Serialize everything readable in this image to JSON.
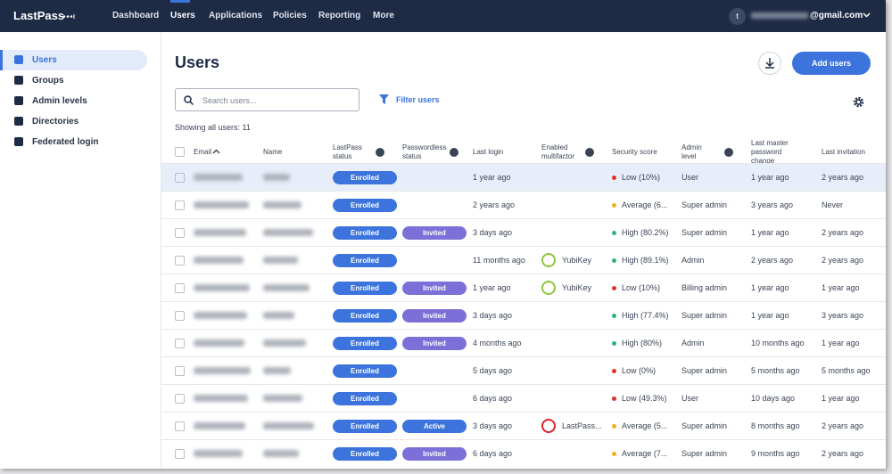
{
  "nav": {
    "brand": "LastPass",
    "items": [
      "Dashboard",
      "Users",
      "Applications",
      "Policies",
      "Reporting",
      "More"
    ],
    "active": 1,
    "account_initial": "t",
    "account_email": "@gmail.com"
  },
  "sidebar": {
    "items": [
      "Users",
      "Groups",
      "Admin levels",
      "Directories",
      "Federated login"
    ],
    "active": 0
  },
  "header": {
    "title": "Users",
    "add_button": "Add users",
    "search_placeholder": "Search users...",
    "filter": "Filter users",
    "count": "Showing all users: 11"
  },
  "table": {
    "columns": [
      "Email",
      "Name",
      "LastPass status",
      "Passwordless status",
      "Last login",
      "Enabled multifactor",
      "Security score",
      "Admin level",
      "Last master password change",
      "Last invitation"
    ],
    "rows": [
      {
        "status": "Enrolled",
        "passwordless": null,
        "last_login": "1 year ago",
        "mfa": null,
        "score": "Low (10%)",
        "score_color": "#e0312b",
        "admin": "User",
        "last_change": "1 year ago",
        "last_invite": "2 years ago"
      },
      {
        "status": "Enrolled",
        "passwordless": null,
        "last_login": "2 years ago",
        "mfa": null,
        "score": "Average (6...",
        "score_color": "#f2b01e",
        "admin": "Super admin",
        "last_change": "3 years ago",
        "last_invite": "Never"
      },
      {
        "status": "Enrolled",
        "passwordless": "Invited",
        "passwordless_color": "#7c6fd8",
        "last_login": "3 days ago",
        "mfa": null,
        "score": "High (80.2%)",
        "score_color": "#2bb673",
        "admin": "Super admin",
        "last_change": "1 year ago",
        "last_invite": "2 years ago"
      },
      {
        "status": "Enrolled",
        "passwordless": null,
        "last_login": "11 months ago",
        "mfa": "YubiKey",
        "mfa_color": "#8cc63f",
        "score": "High (89.1%)",
        "score_color": "#2bb673",
        "admin": "Admin",
        "last_change": "2 years ago",
        "last_invite": "2 years ago"
      },
      {
        "status": "Enrolled",
        "passwordless": "Invited",
        "passwordless_color": "#7c6fd8",
        "last_login": "1 year ago",
        "mfa": "YubiKey",
        "mfa_color": "#8cc63f",
        "score": "Low (10%)",
        "score_color": "#e0312b",
        "admin": "Billing admin",
        "last_change": "1 year ago",
        "last_invite": "1 year ago"
      },
      {
        "status": "Enrolled",
        "passwordless": "Invited",
        "passwordless_color": "#7c6fd8",
        "last_login": "3 days ago",
        "mfa": null,
        "score": "High (77.4%)",
        "score_color": "#2bb673",
        "admin": "Super admin",
        "last_change": "1 year ago",
        "last_invite": "3 years ago"
      },
      {
        "status": "Enrolled",
        "passwordless": "Invited",
        "passwordless_color": "#7c6fd8",
        "last_login": "4 months ago",
        "mfa": null,
        "score": "High (80%)",
        "score_color": "#2bb673",
        "admin": "Admin",
        "last_change": "10 months ago",
        "last_invite": "1 year ago"
      },
      {
        "status": "Enrolled",
        "passwordless": null,
        "last_login": "5 days ago",
        "mfa": null,
        "score": "Low (0%)",
        "score_color": "#e0312b",
        "admin": "Super admin",
        "last_change": "5 months ago",
        "last_invite": "5 months ago"
      },
      {
        "status": "Enrolled",
        "passwordless": null,
        "last_login": "6 days ago",
        "mfa": null,
        "score": "Low (49.3%)",
        "score_color": "#e0312b",
        "admin": "User",
        "last_change": "10 days ago",
        "last_invite": "1 year ago"
      },
      {
        "status": "Enrolled",
        "passwordless": "Active",
        "passwordless_color": "#3c73dc",
        "last_login": "3 days ago",
        "mfa": "LastPass...",
        "mfa_color": "#d8232a",
        "score": "Average (5...",
        "score_color": "#f2b01e",
        "admin": "Super admin",
        "last_change": "8 months ago",
        "last_invite": "2 years ago"
      },
      {
        "status": "Enrolled",
        "passwordless": "Invited",
        "passwordless_color": "#7c6fd8",
        "last_login": "6 days ago",
        "mfa": null,
        "score": "Average (7...",
        "score_color": "#f2b01e",
        "admin": "Super admin",
        "last_change": "9 months ago",
        "last_invite": "2 years ago"
      }
    ]
  }
}
